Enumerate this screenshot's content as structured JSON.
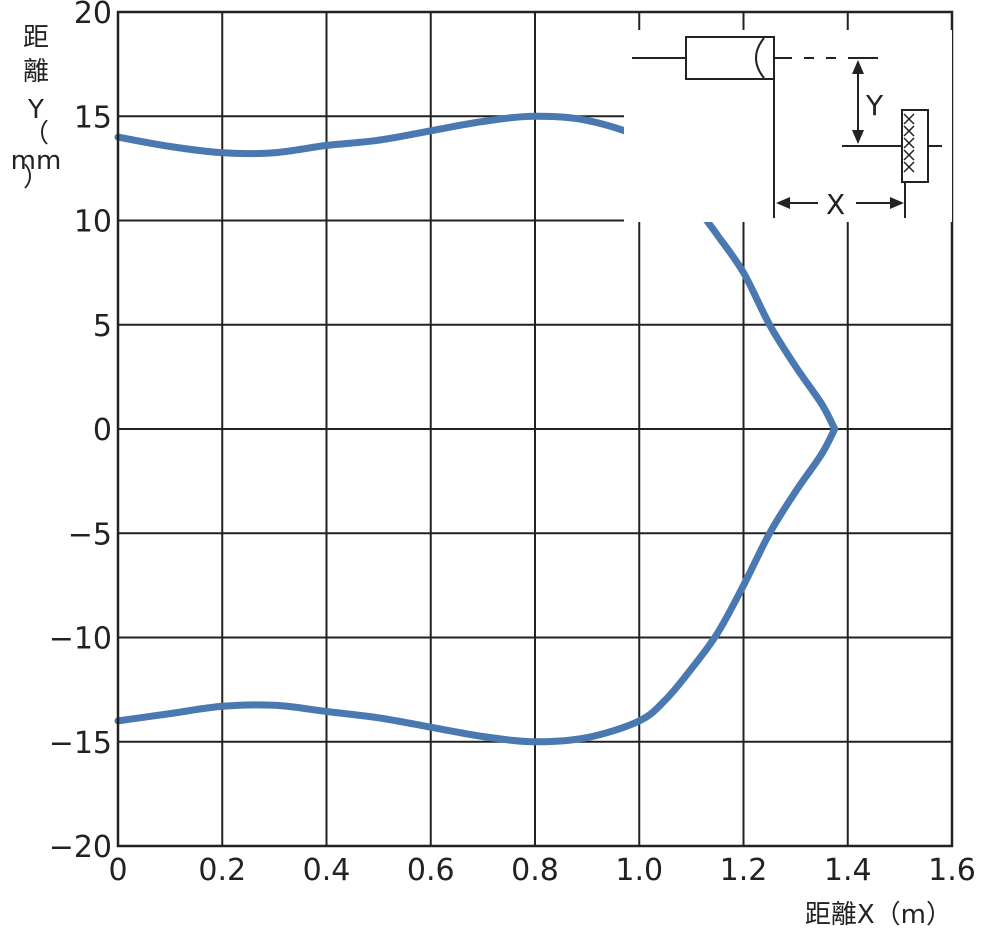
{
  "chart_data": {
    "type": "line",
    "xlabel": "距離X（m）",
    "ylabel": [
      "距",
      "離",
      "Y",
      "（",
      "mm",
      "）"
    ],
    "xlim": [
      0,
      1.6
    ],
    "ylim": [
      -20,
      20
    ],
    "x_ticks": [
      "0",
      "0.2",
      "0.4",
      "0.6",
      "0.8",
      "1.0",
      "1.2",
      "1.4",
      "1.6"
    ],
    "y_ticks": [
      "20",
      "15",
      "10",
      "5",
      "0",
      "−5",
      "−10",
      "−15",
      "−20"
    ],
    "grid": true,
    "line_color": "#4a78b0",
    "series": [
      {
        "points": [
          [
            0,
            14.0
          ],
          [
            0.1,
            13.55
          ],
          [
            0.2,
            13.25
          ],
          [
            0.3,
            13.25
          ],
          [
            0.4,
            13.6
          ],
          [
            0.5,
            13.85
          ],
          [
            0.6,
            14.3
          ],
          [
            0.7,
            14.75
          ],
          [
            0.8,
            15.0
          ],
          [
            0.9,
            14.8
          ],
          [
            1.0,
            14.0
          ],
          [
            1.05,
            12.9
          ],
          [
            1.1,
            11.0
          ],
          [
            1.15,
            9.3
          ],
          [
            1.2,
            7.5
          ],
          [
            1.25,
            5.0
          ],
          [
            1.3,
            3.0
          ],
          [
            1.35,
            1.2
          ],
          [
            1.375,
            0
          ]
        ]
      },
      {
        "points": [
          [
            1.375,
            0
          ],
          [
            1.35,
            -1.2
          ],
          [
            1.3,
            -3.0
          ],
          [
            1.25,
            -5.0
          ],
          [
            1.2,
            -7.5
          ],
          [
            1.15,
            -9.8
          ],
          [
            1.1,
            -11.5
          ],
          [
            1.05,
            -13.0
          ],
          [
            1.0,
            -14.0
          ],
          [
            0.9,
            -14.8
          ],
          [
            0.8,
            -15.0
          ],
          [
            0.7,
            -14.75
          ],
          [
            0.6,
            -14.3
          ],
          [
            0.5,
            -13.85
          ],
          [
            0.4,
            -13.55
          ],
          [
            0.3,
            -13.25
          ],
          [
            0.2,
            -13.3
          ],
          [
            0.1,
            -13.65
          ],
          [
            0,
            -14.0
          ]
        ]
      }
    ],
    "inset": {
      "labels": {
        "y": "Y",
        "x": "X"
      }
    }
  }
}
